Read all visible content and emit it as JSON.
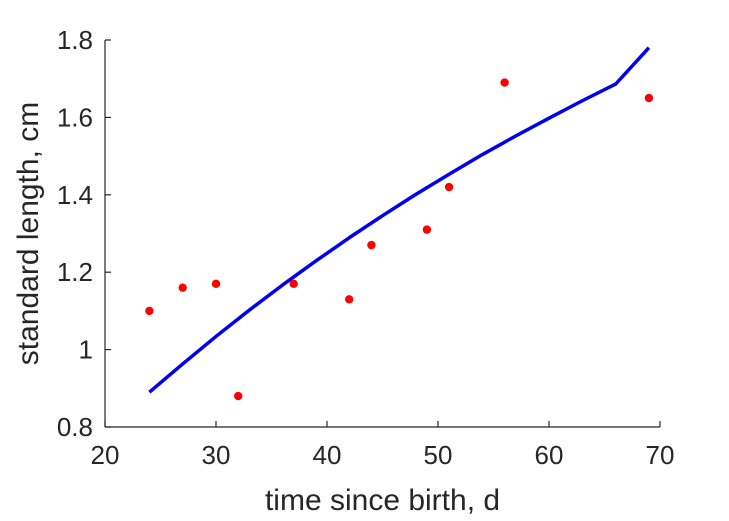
{
  "chart_data": {
    "type": "scatter",
    "title": "",
    "xlabel": "time since birth, d",
    "ylabel": "standard length, cm",
    "xlim": [
      20,
      70
    ],
    "ylim": [
      0.8,
      1.8
    ],
    "xticks": [
      20,
      30,
      40,
      50,
      60,
      70
    ],
    "xtick_labels": [
      "20",
      "30",
      "40",
      "50",
      "60",
      "70"
    ],
    "yticks": [
      0.8,
      1.0,
      1.2,
      1.4,
      1.6,
      1.8
    ],
    "ytick_labels": [
      "0.8",
      "1",
      "1.2",
      "1.4",
      "1.6",
      "1.8"
    ],
    "grid": false,
    "series": [
      {
        "kind": "scatter",
        "color": "#ff0000",
        "x": [
          24,
          27,
          30,
          32,
          37,
          42,
          44,
          49,
          51,
          56,
          69
        ],
        "y": [
          1.1,
          1.16,
          1.17,
          0.88,
          1.17,
          1.13,
          1.27,
          1.31,
          1.42,
          1.69,
          1.65
        ]
      },
      {
        "kind": "line",
        "color": "#0000ee",
        "x": [
          24,
          27,
          30,
          33,
          36,
          39,
          42,
          45,
          48,
          51,
          54,
          57,
          60,
          63,
          66,
          69
        ],
        "y": [
          0.89,
          0.963,
          1.034,
          1.102,
          1.167,
          1.229,
          1.289,
          1.346,
          1.401,
          1.453,
          1.504,
          1.552,
          1.598,
          1.643,
          1.686,
          1.78
        ]
      }
    ]
  }
}
